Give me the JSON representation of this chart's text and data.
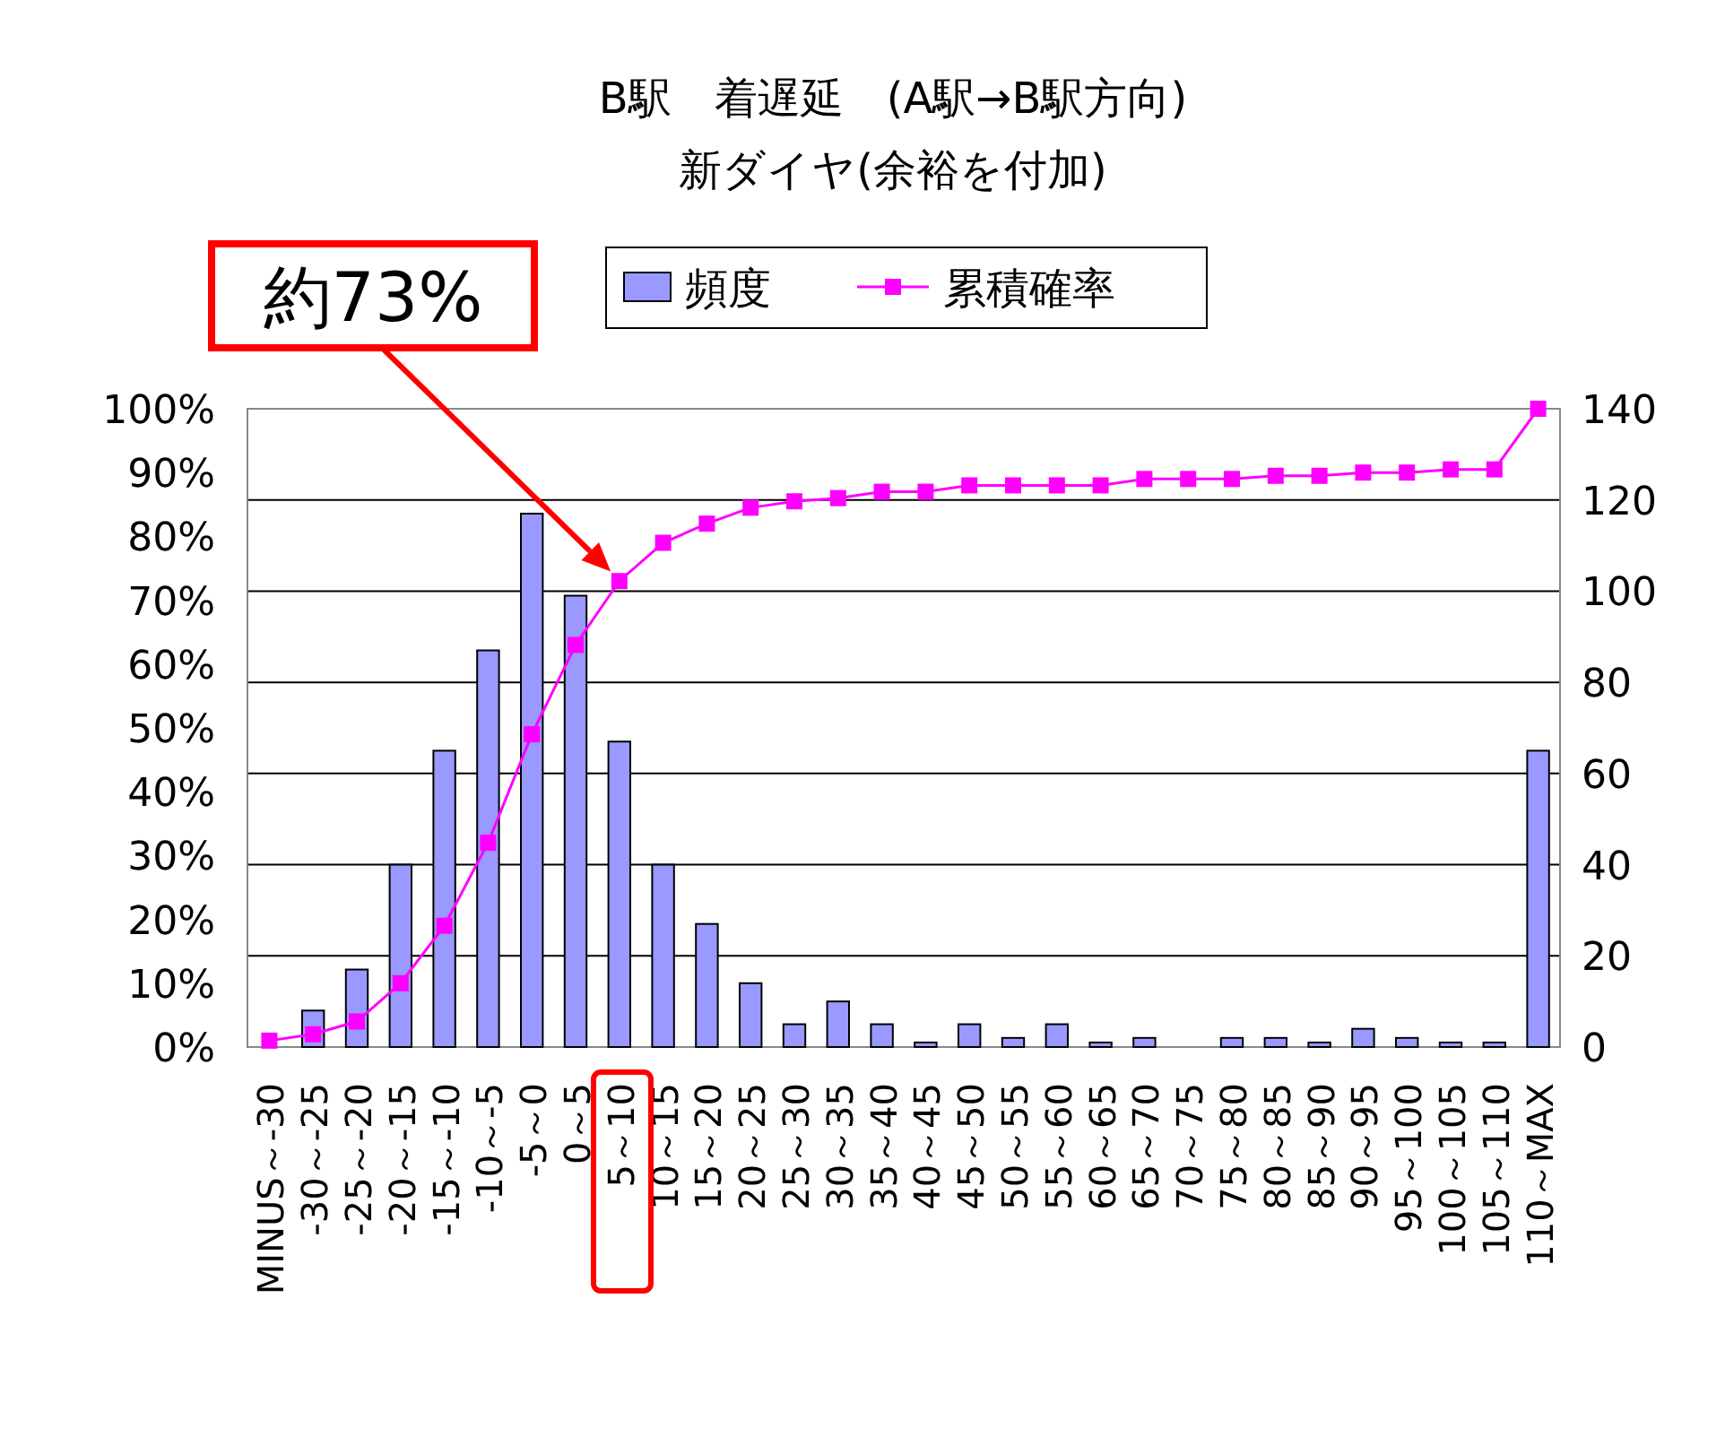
{
  "chart_data": {
    "type": "bar",
    "title": "B駅　着遅延　(A駅→B駅方向)",
    "subtitle": "新ダイヤ(余裕を付加)",
    "categories": [
      "MINUS～-30",
      "-30～-25",
      "-25～-20",
      "-20～-15",
      "-15～-10",
      "-10～-5",
      "-5～0",
      "0～5",
      "5～10",
      "10～15",
      "15～20",
      "20～25",
      "25～30",
      "30～35",
      "35～40",
      "40～45",
      "45～50",
      "50～55",
      "55～60",
      "60～65",
      "65～70",
      "70～75",
      "75～80",
      "80～85",
      "85～90",
      "90～95",
      "95～100",
      "100～105",
      "105～110",
      "110～MAX"
    ],
    "series": [
      {
        "name": "頻度",
        "axis": "y2",
        "color": "#9999ff",
        "values": [
          0,
          8,
          17,
          40,
          65,
          87,
          117,
          99,
          67,
          40,
          27,
          14,
          5,
          10,
          5,
          1,
          5,
          2,
          5,
          1,
          2,
          0,
          2,
          2,
          1,
          4,
          2,
          1,
          1,
          65
        ]
      },
      {
        "name": "累積確率",
        "type": "line",
        "color": "#ff00ff",
        "values": [
          1,
          2,
          4,
          10,
          19,
          32,
          49,
          63,
          73,
          79,
          82,
          84.5,
          85.5,
          86,
          87,
          87,
          88,
          88,
          88,
          88,
          89,
          89,
          89,
          89.5,
          89.5,
          90,
          90,
          90.5,
          90.5,
          100
        ]
      }
    ],
    "ylim": [
      0,
      100
    ],
    "yticks": [
      {
        "value": 0,
        "label": "0%"
      },
      {
        "value": 10,
        "label": "10%"
      },
      {
        "value": 20,
        "label": "20%"
      },
      {
        "value": 30,
        "label": "30%"
      },
      {
        "value": 40,
        "label": "40%"
      },
      {
        "value": 50,
        "label": "50%"
      },
      {
        "value": 60,
        "label": "60%"
      },
      {
        "value": 70,
        "label": "70%"
      },
      {
        "value": 80,
        "label": "80%"
      },
      {
        "value": 90,
        "label": "90%"
      },
      {
        "value": 100,
        "label": "100%"
      }
    ],
    "y2lim": [
      0,
      140
    ],
    "y2ticks": [
      0,
      20,
      40,
      60,
      80,
      100,
      120,
      140
    ],
    "grid": true,
    "legend": "top",
    "marker": "square",
    "annotations": [
      "約73%"
    ]
  }
}
